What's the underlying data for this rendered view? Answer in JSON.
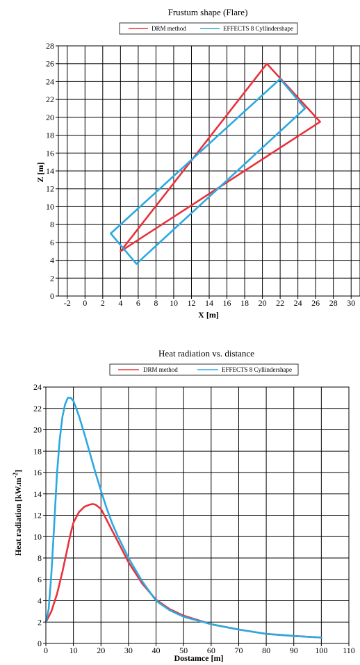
{
  "chart_data": [
    {
      "type": "line",
      "title": "Frustum shape (Flare)",
      "xlabel": "X [m]",
      "ylabel": "Z [m]",
      "xlim": [
        -3,
        31
      ],
      "ylim": [
        0,
        28
      ],
      "xticks": [
        -2,
        0,
        2,
        4,
        6,
        8,
        10,
        12,
        14,
        16,
        18,
        20,
        22,
        24,
        26,
        28,
        30
      ],
      "yticks": [
        0,
        2,
        4,
        6,
        8,
        10,
        12,
        14,
        16,
        18,
        20,
        22,
        24,
        26,
        28
      ],
      "grid": true,
      "legend_position": "top",
      "series": [
        {
          "name": "DRM method",
          "color": "#e8323c",
          "x": [
            4.0,
            20.5,
            26.5,
            4.0
          ],
          "y": [
            5.0,
            26.0,
            19.5,
            5.0
          ]
        },
        {
          "name": "EFFECTS 8 Cyllindershape",
          "color": "#2ba9e0",
          "x": [
            2.9,
            22.0,
            24.8,
            5.8,
            2.9
          ],
          "y": [
            7.0,
            24.3,
            21.0,
            3.6,
            7.0
          ]
        }
      ]
    },
    {
      "type": "line",
      "title": "Heat radiation vs. distance",
      "xlabel": "Dostamce [m]",
      "ylabel": "Heat radiation [kW.m",
      "ylabel_sup": "-2",
      "ylabel_close": "]",
      "xlim": [
        0,
        110
      ],
      "ylim": [
        0,
        24
      ],
      "xticks": [
        0,
        10,
        20,
        30,
        40,
        50,
        60,
        70,
        80,
        90,
        100,
        110
      ],
      "yticks": [
        0,
        2,
        4,
        6,
        8,
        10,
        12,
        14,
        16,
        18,
        20,
        22,
        24
      ],
      "grid": true,
      "legend_position": "top",
      "series": [
        {
          "name": "DRM method",
          "color": "#e8323c",
          "x": [
            0,
            2,
            4,
            6,
            8,
            9,
            10,
            12,
            14,
            16,
            17,
            18,
            20,
            22,
            24,
            26,
            30,
            35,
            40,
            45,
            50,
            60,
            70,
            80,
            90,
            100
          ],
          "y": [
            2.0,
            3.0,
            4.6,
            6.7,
            9.1,
            10.3,
            11.3,
            12.3,
            12.8,
            13.0,
            13.05,
            13.0,
            12.6,
            11.6,
            10.6,
            9.6,
            7.6,
            5.6,
            4.1,
            3.2,
            2.6,
            1.8,
            1.3,
            0.9,
            0.7,
            0.55
          ]
        },
        {
          "name": "EFFECTS 8 Cyllindershape",
          "color": "#2ba9e0",
          "x": [
            0,
            1,
            2,
            3,
            4,
            5,
            6,
            7,
            8,
            9,
            10,
            12,
            14,
            16,
            18,
            20,
            22,
            24,
            26,
            30,
            35,
            40,
            45,
            50,
            60,
            70,
            80,
            90,
            100
          ],
          "y": [
            2.0,
            3.2,
            6.5,
            11.0,
            15.8,
            19.0,
            21.2,
            22.4,
            23.0,
            23.0,
            22.7,
            21.3,
            19.6,
            17.8,
            16.0,
            14.3,
            12.7,
            11.3,
            10.1,
            8.0,
            5.8,
            4.0,
            3.1,
            2.5,
            1.8,
            1.3,
            0.9,
            0.7,
            0.55
          ]
        }
      ]
    }
  ]
}
